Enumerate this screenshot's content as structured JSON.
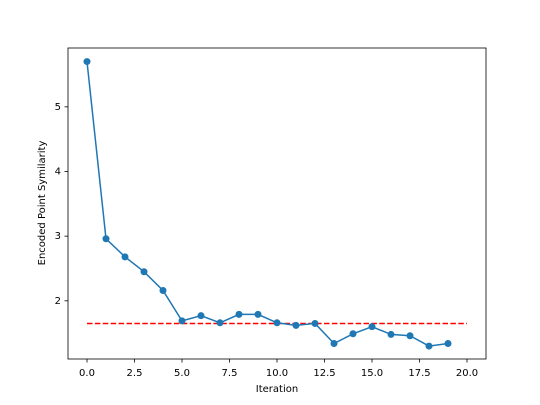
{
  "chart_data": {
    "type": "line",
    "xlabel": "Iteration",
    "ylabel": "Encoded Point Symilarity",
    "x": [
      0,
      1,
      2,
      3,
      4,
      5,
      6,
      7,
      8,
      9,
      10,
      11,
      12,
      13,
      14,
      15,
      16,
      17,
      18,
      19
    ],
    "series": [
      {
        "color": "#1f77b4",
        "values": [
          5.7,
          2.96,
          2.68,
          2.45,
          2.16,
          1.69,
          1.77,
          1.66,
          1.79,
          1.79,
          1.66,
          1.62,
          1.65,
          1.34,
          1.49,
          1.6,
          1.48,
          1.46,
          1.3,
          1.34
        ]
      }
    ],
    "reference_line": {
      "x": [
        0,
        20
      ],
      "y": 1.65,
      "color": "#ff0000"
    },
    "xlim": [
      -1,
      21
    ],
    "ylim": [
      1.1,
      5.91
    ],
    "xticks": [
      {
        "value": 0,
        "label": "0.0"
      },
      {
        "value": 2.5,
        "label": "2.5"
      },
      {
        "value": 5,
        "label": "5.0"
      },
      {
        "value": 7.5,
        "label": "7.5"
      },
      {
        "value": 10,
        "label": "10.0"
      },
      {
        "value": 12.5,
        "label": "12.5"
      },
      {
        "value": 15,
        "label": "15.0"
      },
      {
        "value": 17.5,
        "label": "17.5"
      },
      {
        "value": 20,
        "label": "20.0"
      }
    ],
    "yticks": [
      2,
      3,
      4,
      5
    ]
  }
}
